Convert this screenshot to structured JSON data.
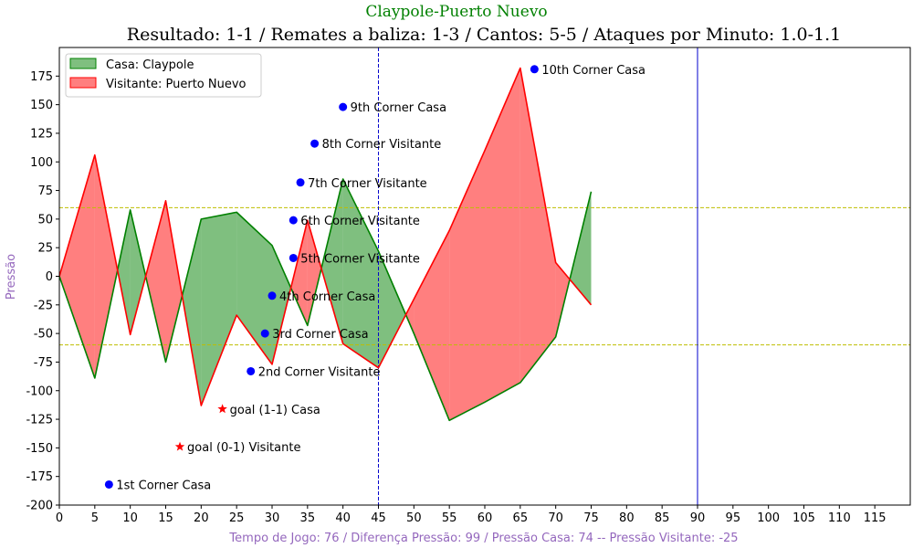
{
  "chart_data": {
    "type": "area",
    "suptitle": "Claypole-Puerto Nuevo",
    "title": "Resultado: 1-1 / Remates a baliza: 1-3 / Cantos: 5-5 / Ataques por Minuto: 1.0-1.1",
    "xlabel": "Tempo de Jogo: 76 / Diferença Pressão: 99 / Pressão Casa: 74 -- Pressão Visitante: -25",
    "ylabel": "Pressão",
    "xlim": [
      0,
      120
    ],
    "ylim": [
      -200,
      200
    ],
    "x_ticks": [
      0,
      5,
      10,
      15,
      20,
      25,
      30,
      35,
      40,
      45,
      50,
      55,
      60,
      65,
      70,
      75,
      80,
      85,
      90,
      95,
      100,
      105,
      110,
      115
    ],
    "y_ticks": [
      -200,
      -175,
      -150,
      -125,
      -100,
      -75,
      -50,
      -25,
      0,
      25,
      50,
      75,
      100,
      125,
      150,
      175
    ],
    "legend_position": "upper-left",
    "colors": {
      "home": "#008000",
      "away": "#ff0000",
      "home_fill": "#7fbf7f",
      "away_fill": "#ff7f7f",
      "corner": "#0000ff",
      "goal": "#ff0000",
      "ref_line": "#bfbf00",
      "half": "#0000cc"
    },
    "series": [
      {
        "name": "Casa: Claypole",
        "x": [
          0,
          5,
          10,
          15,
          20,
          25,
          30,
          35,
          40,
          45,
          50,
          55,
          60,
          65,
          70,
          75
        ],
        "values": [
          0,
          -89,
          58,
          -75,
          50,
          56,
          27,
          -43,
          85,
          22,
          -50,
          -126,
          -110,
          -93,
          -53,
          74
        ]
      },
      {
        "name": "Visitante: Puerto Nuevo",
        "x": [
          0,
          5,
          10,
          15,
          20,
          25,
          30,
          35,
          40,
          45,
          50,
          55,
          60,
          65,
          70,
          75
        ],
        "values": [
          0,
          106,
          -51,
          66,
          -113,
          -34,
          -77,
          49,
          -59,
          -80,
          -20,
          40,
          110,
          182,
          12,
          -25
        ]
      }
    ],
    "reference_lines": {
      "horizontal": [
        60,
        -60
      ],
      "vertical_dashed": [
        45
      ],
      "vertical_solid": [
        90
      ]
    },
    "annotations": [
      {
        "x": 7,
        "y": -182,
        "marker": "dot",
        "text": "1st Corner Casa"
      },
      {
        "x": 27,
        "y": -83,
        "marker": "dot",
        "text": "2nd Corner Visitante"
      },
      {
        "x": 29,
        "y": -50,
        "marker": "dot",
        "text": "3rd Corner Casa"
      },
      {
        "x": 30,
        "y": -17,
        "marker": "dot",
        "text": "4th Corner Casa"
      },
      {
        "x": 33,
        "y": 16,
        "marker": "dot",
        "text": "5th Corner Visitante"
      },
      {
        "x": 33,
        "y": 49,
        "marker": "dot",
        "text": "6th Corner Visitante"
      },
      {
        "x": 34,
        "y": 82,
        "marker": "dot",
        "text": "7th Corner Visitante"
      },
      {
        "x": 36,
        "y": 116,
        "marker": "dot",
        "text": "8th Corner Visitante"
      },
      {
        "x": 40,
        "y": 148,
        "marker": "dot",
        "text": "9th Corner Casa"
      },
      {
        "x": 67,
        "y": 181,
        "marker": "dot",
        "text": "10th Corner Casa"
      },
      {
        "x": 17,
        "y": -149,
        "marker": "star",
        "text": "goal (0-1) Visitante"
      },
      {
        "x": 23,
        "y": -116,
        "marker": "star",
        "text": "goal (1-1) Casa"
      }
    ]
  }
}
